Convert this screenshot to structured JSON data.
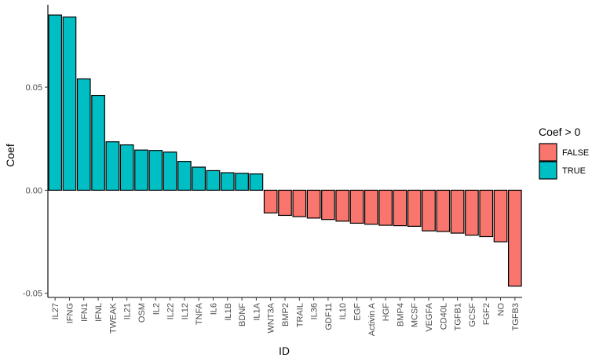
{
  "chart_data": {
    "type": "bar",
    "xlabel": "ID",
    "ylabel": "Coef",
    "ylim": [
      -0.052,
      0.09
    ],
    "yticks": [
      -0.05,
      0.0,
      0.05
    ],
    "ytick_labels": [
      "-0.05",
      "0.00",
      "0.05"
    ],
    "grid": false,
    "categories": [
      "IL27",
      "IFNG",
      "IFN1",
      "IFNL",
      "TWEAK",
      "IL21",
      "OSM",
      "IL2",
      "IL22",
      "IL12",
      "TNFA",
      "IL6",
      "IL1B",
      "BDNF",
      "IL1A",
      "WNT3A",
      "BMP2",
      "TRAIL",
      "IL36",
      "GDF11",
      "IL10",
      "EGF",
      "Activin A",
      "HGF",
      "BMP4",
      "MCSF",
      "VEGFA",
      "CD40L",
      "TGFB1",
      "GCSF",
      "FGF2",
      "NO",
      "TGFB3"
    ],
    "values": [
      0.085,
      0.084,
      0.054,
      0.046,
      0.0235,
      0.022,
      0.0195,
      0.0193,
      0.0185,
      0.014,
      0.0112,
      0.0095,
      0.0085,
      0.0082,
      0.0079,
      -0.011,
      -0.0122,
      -0.0128,
      -0.0135,
      -0.0142,
      -0.015,
      -0.016,
      -0.0165,
      -0.017,
      -0.0172,
      -0.0175,
      -0.0197,
      -0.02,
      -0.0208,
      -0.0218,
      -0.0225,
      -0.025,
      -0.0465
    ],
    "legend": {
      "title": "Coef > 0",
      "placement": "right",
      "entries": [
        {
          "label": "FALSE",
          "color": "#F8766D"
        },
        {
          "label": "TRUE",
          "color": "#00BFC4"
        }
      ]
    },
    "colors": {
      "positive": "#00BFC4",
      "negative": "#F8766D"
    }
  }
}
